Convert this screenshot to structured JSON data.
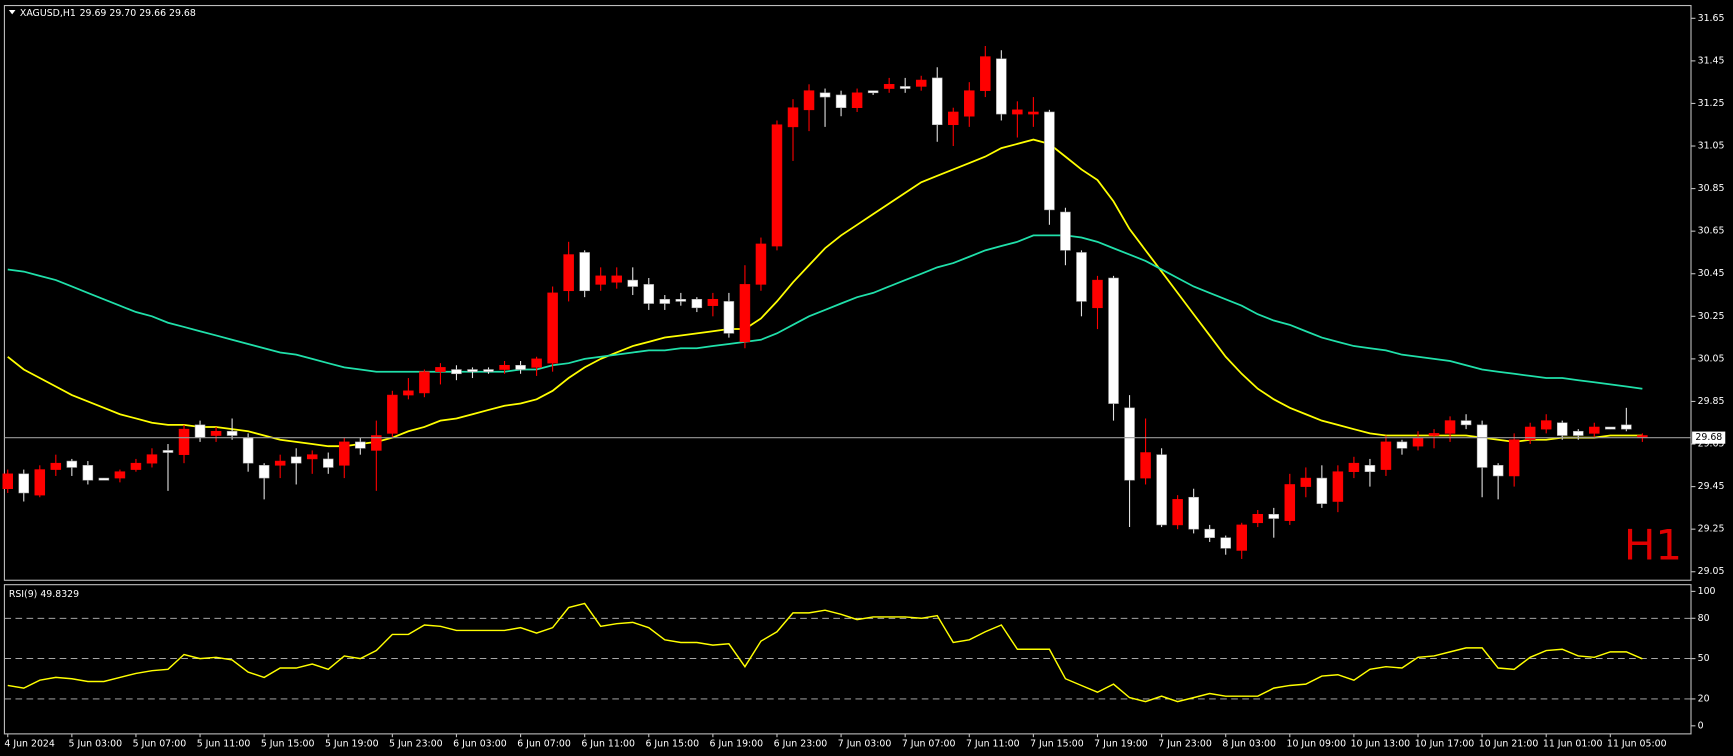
{
  "chart_data": [
    {
      "type": "candlestick",
      "title": "XAGUSD,H1",
      "quote": "29.69 29.70 29.66 29.68",
      "watermark": "H1",
      "categories": [
        "4 Jun 2024",
        null,
        null,
        null,
        "5 Jun 03:00",
        null,
        null,
        null,
        "5 Jun 07:00",
        null,
        null,
        null,
        "5 Jun 11:00",
        null,
        null,
        null,
        "5 Jun 15:00",
        null,
        null,
        null,
        "5 Jun 19:00",
        null,
        null,
        null,
        "5 Jun 23:00",
        null,
        null,
        null,
        "6 Jun 03:00",
        null,
        null,
        null,
        "6 Jun 07:00",
        null,
        null,
        null,
        "6 Jun 11:00",
        null,
        null,
        null,
        "6 Jun 15:00",
        null,
        null,
        null,
        "6 Jun 19:00",
        null,
        null,
        null,
        "6 Jun 23:00",
        null,
        null,
        null,
        "7 Jun 03:00",
        null,
        null,
        null,
        "7 Jun 07:00",
        null,
        null,
        null,
        "7 Jun 11:00",
        null,
        null,
        null,
        "7 Jun 15:00",
        null,
        null,
        null,
        "7 Jun 19:00",
        null,
        null,
        null,
        "7 Jun 23:00",
        null,
        null,
        null,
        "8 Jun 03:00",
        null,
        null,
        null,
        "10 Jun 09:00",
        null,
        null,
        null,
        "10 Jun 13:00",
        null,
        null,
        null,
        "10 Jun 17:00",
        null,
        null,
        null,
        "10 Jun 21:00",
        null,
        null,
        null,
        "11 Jun 01:00",
        null,
        null,
        null,
        "11 Jun 05:00",
        null,
        null
      ],
      "open": [
        29.51,
        29.42,
        29.53,
        29.56,
        29.54,
        29.48,
        29.48,
        29.52,
        29.56,
        29.6,
        29.61,
        29.72,
        29.68,
        29.71,
        29.69,
        29.56,
        29.49,
        29.57,
        29.56,
        29.6,
        29.54,
        29.66,
        29.63,
        29.69,
        29.88,
        29.9,
        29.99,
        30.01,
        29.98,
        29.99,
        29.99,
        30.02,
        30.0,
        30.05,
        30.36,
        30.54,
        30.37,
        30.44,
        30.44,
        30.39,
        30.31,
        30.31,
        30.32,
        30.29,
        30.33,
        30.17,
        30.4,
        30.59,
        31.15,
        31.23,
        31.31,
        31.28,
        31.23,
        31.3,
        31.3,
        31.34,
        31.32,
        31.36,
        31.15,
        31.21,
        31.31,
        31.47,
        31.2,
        31.22,
        31.21,
        30.75,
        30.56,
        30.32,
        30.42,
        29.84,
        29.48,
        29.61,
        29.27,
        29.39,
        29.25,
        29.21,
        29.16,
        29.27,
        29.32,
        29.3,
        29.46,
        29.49,
        29.37,
        29.52,
        29.56,
        29.52,
        29.66,
        29.63,
        29.68,
        29.7,
        29.76,
        29.74,
        29.54,
        29.5,
        29.67,
        29.73,
        29.76,
        29.69,
        29.69,
        29.73,
        29.72,
        29.72,
        29.69
      ],
      "high": [
        29.53,
        29.53,
        29.55,
        29.6,
        29.58,
        29.57,
        29.49,
        29.53,
        29.58,
        29.63,
        29.65,
        29.74,
        29.76,
        29.73,
        29.77,
        29.7,
        29.56,
        29.6,
        29.63,
        29.62,
        29.61,
        29.68,
        29.68,
        29.76,
        29.9,
        29.96,
        30.0,
        30.03,
        30.02,
        30.01,
        30.01,
        30.04,
        30.04,
        30.06,
        30.39,
        30.6,
        30.56,
        30.48,
        30.48,
        30.48,
        30.43,
        30.35,
        30.36,
        30.34,
        30.36,
        30.36,
        30.49,
        30.62,
        31.17,
        31.27,
        31.34,
        31.32,
        31.31,
        31.32,
        31.31,
        31.37,
        31.37,
        31.38,
        31.42,
        31.23,
        31.35,
        31.52,
        31.5,
        31.26,
        31.28,
        31.22,
        30.76,
        30.56,
        30.44,
        30.44,
        29.88,
        29.77,
        29.63,
        29.41,
        29.44,
        29.27,
        29.22,
        29.28,
        29.34,
        29.35,
        29.51,
        29.54,
        29.55,
        29.55,
        29.59,
        29.58,
        29.69,
        29.67,
        29.71,
        29.72,
        29.78,
        29.79,
        29.76,
        29.56,
        29.7,
        29.75,
        29.79,
        29.76,
        29.72,
        29.75,
        29.73,
        29.82,
        29.7
      ],
      "low": [
        29.42,
        29.38,
        29.4,
        29.5,
        29.5,
        29.46,
        29.48,
        29.47,
        29.52,
        29.54,
        29.43,
        29.56,
        29.66,
        29.66,
        29.67,
        29.52,
        29.39,
        29.49,
        29.46,
        29.51,
        29.51,
        29.49,
        29.6,
        29.43,
        29.68,
        29.86,
        29.87,
        29.93,
        29.95,
        29.96,
        29.98,
        29.98,
        29.98,
        29.97,
        29.99,
        30.32,
        30.34,
        30.37,
        30.38,
        30.35,
        30.28,
        30.28,
        30.3,
        30.27,
        30.25,
        30.15,
        30.1,
        30.37,
        30.56,
        30.98,
        31.12,
        31.14,
        31.19,
        31.21,
        31.29,
        31.3,
        31.3,
        31.31,
        31.07,
        31.05,
        31.14,
        31.28,
        31.17,
        31.09,
        31.14,
        30.68,
        30.49,
        30.25,
        30.19,
        29.76,
        29.26,
        29.46,
        29.26,
        29.25,
        29.23,
        29.19,
        29.13,
        29.11,
        29.26,
        29.21,
        29.27,
        29.4,
        29.35,
        29.33,
        29.49,
        29.45,
        29.5,
        29.6,
        29.62,
        29.63,
        29.66,
        29.72,
        29.4,
        29.39,
        29.45,
        29.65,
        29.7,
        29.67,
        29.67,
        29.68,
        29.72,
        29.71,
        29.66
      ],
      "close": [
        29.44,
        29.51,
        29.41,
        29.53,
        29.57,
        29.55,
        29.49,
        29.49,
        29.53,
        29.56,
        29.62,
        29.6,
        29.74,
        29.69,
        29.71,
        29.68,
        29.55,
        29.55,
        29.59,
        29.58,
        29.58,
        29.55,
        29.66,
        29.62,
        29.7,
        29.88,
        29.89,
        29.99,
        30.0,
        30.0,
        30.0,
        30.0,
        30.02,
        30.01,
        30.03,
        30.37,
        30.55,
        30.4,
        30.41,
        30.42,
        30.4,
        30.33,
        30.33,
        30.33,
        30.3,
        30.32,
        30.13,
        30.4,
        30.58,
        31.14,
        31.22,
        31.3,
        31.29,
        31.23,
        31.31,
        31.32,
        31.33,
        31.33,
        31.37,
        31.15,
        31.19,
        31.31,
        31.46,
        31.2,
        31.2,
        31.21,
        30.74,
        30.55,
        30.29,
        30.43,
        29.82,
        29.49,
        29.6,
        29.27,
        29.4,
        29.25,
        29.21,
        29.15,
        29.28,
        29.32,
        29.29,
        29.45,
        29.49,
        29.38,
        29.52,
        29.55,
        29.53,
        29.66,
        29.64,
        29.69,
        29.7,
        29.76,
        29.74,
        29.55,
        29.5,
        29.67,
        29.72,
        29.75,
        29.71,
        29.7,
        29.73,
        29.74,
        29.68
      ],
      "up_color": "#ffffff",
      "down_color": "#ff0000",
      "wick_up_color": "#e0e0e0",
      "wick_down_color": "#ff0000",
      "series": [
        {
          "color": "#ffff00",
          "values": [
            30.06,
            30.0,
            29.96,
            29.92,
            29.88,
            29.85,
            29.82,
            29.79,
            29.77,
            29.75,
            29.74,
            29.74,
            29.73,
            29.73,
            29.72,
            29.71,
            29.69,
            29.67,
            29.66,
            29.65,
            29.64,
            29.64,
            29.65,
            29.66,
            29.68,
            29.71,
            29.73,
            29.76,
            29.77,
            29.79,
            29.81,
            29.83,
            29.84,
            29.86,
            29.9,
            29.96,
            30.01,
            30.05,
            30.08,
            30.11,
            30.13,
            30.15,
            30.16,
            30.17,
            30.18,
            30.19,
            30.19,
            30.24,
            30.32,
            30.41,
            30.49,
            30.57,
            30.63,
            30.68,
            30.73,
            30.78,
            30.83,
            30.88,
            30.91,
            30.94,
            30.97,
            31.0,
            31.04,
            31.06,
            31.08,
            31.06,
            31.0,
            30.94,
            30.89,
            30.79,
            30.66,
            30.56,
            30.46,
            30.36,
            30.26,
            30.16,
            30.06,
            29.98,
            29.91,
            29.86,
            29.82,
            29.79,
            29.76,
            29.74,
            29.72,
            29.7,
            29.69,
            29.69,
            29.69,
            29.69,
            29.69,
            29.69,
            29.68,
            29.67,
            29.66,
            29.67,
            29.67,
            29.68,
            29.68,
            29.68,
            29.69,
            29.69,
            29.69
          ]
        },
        {
          "color": "#20e0aa",
          "values": [
            30.47,
            30.46,
            30.44,
            30.42,
            30.39,
            30.36,
            30.33,
            30.3,
            30.27,
            30.25,
            30.22,
            30.2,
            30.18,
            30.16,
            30.14,
            30.12,
            30.1,
            30.08,
            30.07,
            30.05,
            30.03,
            30.01,
            30.0,
            29.99,
            29.99,
            29.99,
            29.99,
            29.99,
            29.99,
            29.99,
            29.99,
            29.99,
            30.0,
            30.0,
            30.02,
            30.03,
            30.05,
            30.06,
            30.07,
            30.08,
            30.09,
            30.09,
            30.1,
            30.1,
            30.11,
            30.12,
            30.13,
            30.14,
            30.17,
            30.21,
            30.25,
            30.28,
            30.31,
            30.34,
            30.36,
            30.39,
            30.42,
            30.45,
            30.48,
            30.5,
            30.53,
            30.56,
            30.58,
            30.6,
            30.63,
            30.63,
            30.63,
            30.62,
            30.6,
            30.57,
            30.54,
            30.51,
            30.47,
            30.43,
            30.39,
            30.36,
            30.33,
            30.3,
            30.26,
            30.23,
            30.21,
            30.18,
            30.15,
            30.13,
            30.11,
            30.1,
            30.09,
            30.07,
            30.06,
            30.05,
            30.04,
            30.02,
            30.0,
            29.99,
            29.98,
            29.97,
            29.96,
            29.96,
            29.95,
            29.94,
            29.93,
            29.92,
            29.91
          ]
        }
      ],
      "current_price": 29.68,
      "ylim": [
        29.01,
        31.71
      ],
      "yticks": [
        31.65,
        31.45,
        31.25,
        31.05,
        30.85,
        30.65,
        30.45,
        30.25,
        30.05,
        29.85,
        29.65,
        29.45,
        29.25,
        29.05
      ]
    },
    {
      "type": "line",
      "title": "RSI(9) 49.8329",
      "color": "#ffff00",
      "values": [
        30,
        28,
        34,
        36,
        35,
        33,
        33,
        36,
        39,
        41,
        42,
        53,
        50,
        51,
        49,
        40,
        36,
        43,
        43,
        46,
        42,
        52,
        50,
        56,
        68,
        68,
        75,
        74,
        71,
        71,
        71,
        71,
        73,
        69,
        73,
        88,
        91,
        74,
        76,
        77,
        73,
        64,
        62,
        62,
        60,
        61,
        44,
        63,
        70,
        84,
        84,
        86,
        83,
        79,
        81,
        81,
        81,
        80,
        82,
        62,
        64,
        70,
        75,
        57,
        57,
        57,
        35,
        30,
        25,
        31,
        21,
        18,
        22,
        18,
        21,
        24,
        22,
        22,
        22,
        28,
        30,
        31,
        37,
        38,
        34,
        42,
        44,
        43,
        51,
        52,
        55,
        58,
        58,
        43,
        42,
        51,
        56,
        57,
        52,
        51,
        55,
        55,
        49.83
      ],
      "levels": [
        20,
        50,
        80
      ],
      "ylim": [
        -6,
        105
      ],
      "yticks": [
        100,
        80,
        50,
        20,
        0
      ]
    }
  ]
}
